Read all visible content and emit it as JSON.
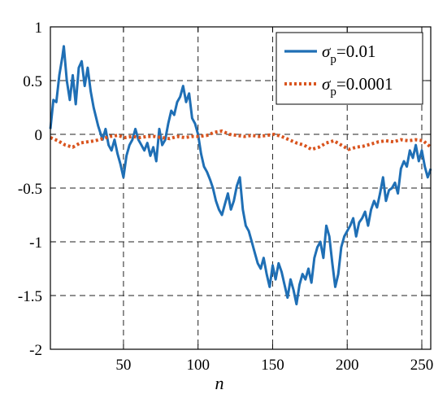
{
  "chart_data": {
    "type": "line",
    "title": "",
    "xlabel": "n",
    "ylabel": "",
    "xlim": [
      1,
      256
    ],
    "ylim": [
      -2,
      1
    ],
    "xticks": [
      50,
      100,
      150,
      200,
      250
    ],
    "yticks": [
      1,
      0.5,
      0,
      -0.5,
      -1,
      -1.5,
      -2
    ],
    "xtick_labels": [
      "50",
      "100",
      "150",
      "200",
      "250"
    ],
    "ytick_labels": [
      "1",
      "0.5",
      "0",
      "-0.5",
      "-1",
      "-1.5",
      "-2"
    ],
    "grid": true,
    "legend_position": "top-right",
    "series": [
      {
        "name": "σp=0.01",
        "legend": {
          "sym": "σ",
          "sub": "p",
          "rest": "=0.01"
        },
        "color": "#1f6fb5",
        "style": "solid",
        "x": [
          1,
          3,
          5,
          7,
          9,
          10,
          12,
          14,
          16,
          18,
          20,
          22,
          24,
          26,
          28,
          30,
          33,
          36,
          38,
          40,
          42,
          44,
          46,
          48,
          50,
          52,
          54,
          56,
          58,
          60,
          62,
          64,
          66,
          68,
          70,
          72,
          74,
          76,
          78,
          80,
          82,
          84,
          86,
          88,
          90,
          92,
          94,
          96,
          98,
          100,
          102,
          104,
          106,
          108,
          110,
          112,
          114,
          116,
          118,
          120,
          122,
          124,
          126,
          128,
          130,
          132,
          134,
          136,
          138,
          140,
          142,
          144,
          146,
          148,
          150,
          152,
          154,
          156,
          158,
          160,
          162,
          164,
          166,
          168,
          170,
          172,
          174,
          176,
          178,
          180,
          182,
          184,
          186,
          188,
          190,
          192,
          194,
          196,
          198,
          200,
          202,
          204,
          206,
          208,
          210,
          212,
          214,
          216,
          218,
          220,
          222,
          224,
          226,
          228,
          230,
          232,
          234,
          236,
          238,
          240,
          242,
          244,
          246,
          248,
          250,
          252,
          254,
          256
        ],
        "y": [
          0.05,
          0.32,
          0.3,
          0.55,
          0.72,
          0.82,
          0.5,
          0.32,
          0.55,
          0.28,
          0.62,
          0.68,
          0.45,
          0.62,
          0.4,
          0.25,
          0.08,
          -0.05,
          0.05,
          -0.1,
          -0.15,
          -0.05,
          -0.18,
          -0.28,
          -0.4,
          -0.2,
          -0.1,
          -0.05,
          0.05,
          -0.05,
          -0.1,
          -0.15,
          -0.08,
          -0.2,
          -0.12,
          -0.25,
          0.05,
          -0.1,
          -0.05,
          0.1,
          0.22,
          0.18,
          0.3,
          0.35,
          0.45,
          0.3,
          0.38,
          0.15,
          0.1,
          0.0,
          -0.18,
          -0.3,
          -0.35,
          -0.42,
          -0.5,
          -0.62,
          -0.7,
          -0.75,
          -0.65,
          -0.55,
          -0.7,
          -0.62,
          -0.48,
          -0.4,
          -0.7,
          -0.85,
          -0.9,
          -1.0,
          -1.1,
          -1.2,
          -1.25,
          -1.15,
          -1.3,
          -1.42,
          -1.22,
          -1.35,
          -1.2,
          -1.28,
          -1.4,
          -1.52,
          -1.35,
          -1.45,
          -1.58,
          -1.4,
          -1.3,
          -1.35,
          -1.25,
          -1.38,
          -1.15,
          -1.05,
          -1.0,
          -1.15,
          -0.85,
          -0.95,
          -1.2,
          -1.42,
          -1.3,
          -1.05,
          -0.95,
          -0.9,
          -0.85,
          -0.78,
          -0.95,
          -0.82,
          -0.78,
          -0.72,
          -0.85,
          -0.7,
          -0.62,
          -0.68,
          -0.55,
          -0.4,
          -0.62,
          -0.52,
          -0.5,
          -0.45,
          -0.55,
          -0.32,
          -0.25,
          -0.3,
          -0.15,
          -0.22,
          -0.1,
          -0.25,
          -0.15,
          -0.3,
          -0.4,
          -0.32
        ]
      },
      {
        "name": "σp=0.0001",
        "legend": {
          "sym": "σ",
          "sub": "p",
          "rest": "=0.0001"
        },
        "color": "#d9541e",
        "style": "dotted",
        "x": [
          1,
          6,
          11,
          16,
          21,
          26,
          31,
          36,
          41,
          46,
          51,
          56,
          61,
          66,
          71,
          76,
          81,
          86,
          91,
          96,
          101,
          106,
          111,
          116,
          121,
          126,
          131,
          136,
          141,
          146,
          151,
          156,
          161,
          166,
          171,
          176,
          181,
          186,
          191,
          196,
          201,
          206,
          211,
          216,
          221,
          226,
          231,
          236,
          241,
          246,
          251,
          256
        ],
        "y": [
          -0.03,
          -0.06,
          -0.1,
          -0.12,
          -0.08,
          -0.07,
          -0.06,
          -0.04,
          -0.02,
          -0.01,
          -0.03,
          -0.02,
          -0.03,
          -0.02,
          -0.02,
          -0.03,
          -0.04,
          -0.02,
          -0.03,
          -0.02,
          -0.02,
          -0.01,
          0.02,
          0.03,
          0.0,
          -0.01,
          -0.02,
          -0.01,
          -0.02,
          -0.01,
          0.0,
          -0.02,
          -0.05,
          -0.08,
          -0.1,
          -0.14,
          -0.12,
          -0.08,
          -0.06,
          -0.1,
          -0.14,
          -0.12,
          -0.11,
          -0.09,
          -0.07,
          -0.06,
          -0.07,
          -0.05,
          -0.06,
          -0.05,
          -0.06,
          -0.12
        ]
      }
    ]
  }
}
